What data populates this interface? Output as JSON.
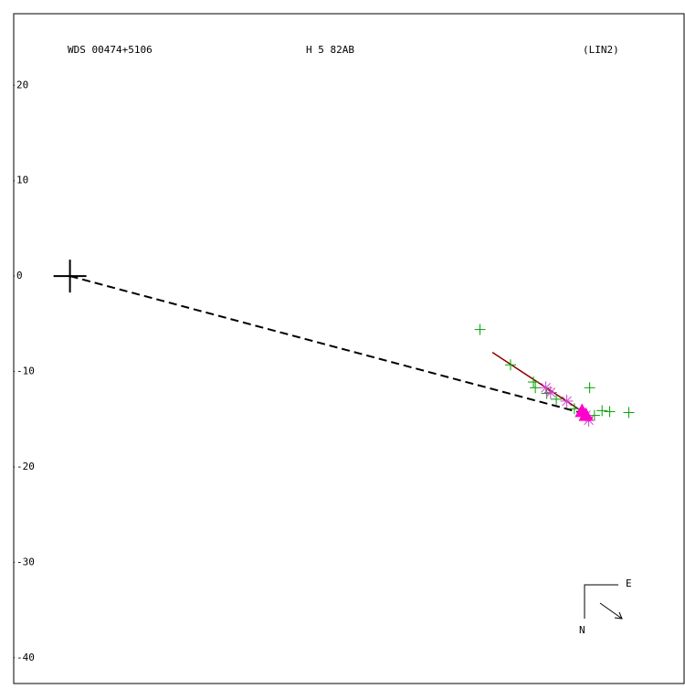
{
  "chart_data": {
    "type": "scatter",
    "title": "WDS 00474+5106",
    "subtitle": "H 5  82AB",
    "annotation": "(LIN2)",
    "xlim": [
      -5.9,
      64.4
    ],
    "ylim": [
      -42.7,
      27.5
    ],
    "yticks": [
      20,
      10,
      0,
      -10,
      -20,
      -30,
      -40
    ],
    "compass": {
      "east": "E",
      "north": "N"
    },
    "series": [
      {
        "marker": "dash",
        "color": "#000000",
        "x": [
          0,
          53.9
        ],
        "values": [
          0,
          -14.4
        ]
      },
      {
        "marker": "line",
        "color": "#8b0000",
        "x": [
          44.3,
          54.8
        ],
        "values": [
          -8.0,
          -14.9
        ]
      },
      {
        "marker": "plus",
        "color": "#00a000",
        "x": [
          43.0,
          46.2,
          48.6,
          48.8,
          50.0,
          51.0,
          54.5,
          55.8,
          56.6,
          58.6,
          55.0,
          52.9
        ],
        "values": [
          -5.6,
          -9.3,
          -11.1,
          -11.7,
          -12.3,
          -12.9,
          -11.7,
          -14.1,
          -14.2,
          -14.3,
          -14.6,
          -13.9
        ]
      },
      {
        "marker": "asterisk",
        "color": "#cc44cc",
        "x": [
          49.9,
          50.4,
          52.1,
          54.1,
          54.4
        ],
        "values": [
          -11.7,
          -12.2,
          -13.1,
          -14.6,
          -15.1
        ]
      },
      {
        "marker": "triangle",
        "color": "#ff00cc",
        "x": [
          53.7,
          54.1
        ],
        "values": [
          -14.2,
          -14.6
        ]
      },
      {
        "marker": "primary",
        "color": "#000000",
        "x": [
          0
        ],
        "values": [
          0
        ]
      }
    ]
  }
}
